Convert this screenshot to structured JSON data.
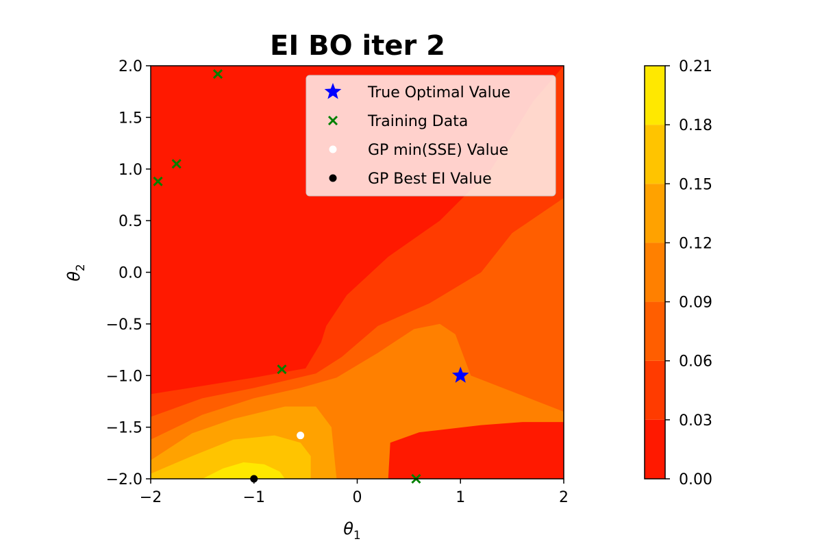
{
  "chart_data": {
    "type": "contourf",
    "title": "EI BO iter 2",
    "xlabel": "θ",
    "xlabel_sub": "1",
    "ylabel": "θ",
    "ylabel_sub": "2",
    "xlim": [
      -2,
      2
    ],
    "ylim": [
      -2,
      2
    ],
    "xticks": [
      -2,
      -1,
      0,
      1,
      2
    ],
    "xtick_labels": [
      "−2",
      "−1",
      "0",
      "1",
      "2"
    ],
    "yticks": [
      2.0,
      1.5,
      1.0,
      0.5,
      0.0,
      -0.5,
      -1.0,
      -1.5,
      -2.0
    ],
    "ytick_labels": [
      "2.0",
      "1.5",
      "1.0",
      "0.5",
      "0.0",
      "−0.5",
      "−1.0",
      "−1.5",
      "−2.0"
    ],
    "colorbar": {
      "levels": [
        0.0,
        0.03,
        0.06,
        0.09,
        0.12,
        0.15,
        0.18,
        0.21
      ],
      "tick_labels": [
        "0.00",
        "0.03",
        "0.06",
        "0.09",
        "0.12",
        "0.15",
        "0.18",
        "0.21"
      ],
      "colors": [
        "#ff1900",
        "#ff3b00",
        "#ff5e00",
        "#ff8000",
        "#ffa200",
        "#ffc400",
        "#ffe800"
      ]
    },
    "contours": [
      {
        "level_index": 1,
        "points": [
          [
            -2,
            -1.18
          ],
          [
            -1.5,
            -1.1
          ],
          [
            -1,
            -1.02
          ],
          [
            -0.5,
            -0.93
          ],
          [
            -0.35,
            -0.68
          ],
          [
            -0.3,
            -0.52
          ],
          [
            -0.1,
            -0.22
          ],
          [
            0.3,
            0.15
          ],
          [
            0.8,
            0.5
          ],
          [
            1.3,
            1.0
          ],
          [
            1.7,
            1.65
          ],
          [
            2,
            2
          ],
          [
            2,
            -2
          ],
          [
            -2,
            -2
          ]
        ]
      },
      {
        "level_index": 2,
        "points": [
          [
            -2,
            -1.4
          ],
          [
            -1.5,
            -1.22
          ],
          [
            -1,
            -1.12
          ],
          [
            -0.4,
            -0.98
          ],
          [
            -0.15,
            -0.82
          ],
          [
            0.2,
            -0.52
          ],
          [
            0.7,
            -0.3
          ],
          [
            1.2,
            0.0
          ],
          [
            1.5,
            0.38
          ],
          [
            2,
            0.72
          ],
          [
            2,
            -2
          ],
          [
            -2,
            -2
          ]
        ]
      },
      {
        "level_index": 3,
        "points": [
          [
            -2,
            -1.62
          ],
          [
            -1.5,
            -1.38
          ],
          [
            -1,
            -1.22
          ],
          [
            -0.55,
            -1.12
          ],
          [
            -0.2,
            -1.02
          ],
          [
            0.2,
            -0.78
          ],
          [
            0.55,
            -0.55
          ],
          [
            0.8,
            -0.5
          ],
          [
            0.95,
            -0.6
          ],
          [
            1.1,
            -1.0
          ],
          [
            2,
            -1.35
          ],
          [
            2,
            -2
          ],
          [
            -2,
            -2
          ]
        ]
      },
      {
        "level_index": 4,
        "points": [
          [
            -2,
            -1.82
          ],
          [
            -1.6,
            -1.56
          ],
          [
            -1.2,
            -1.42
          ],
          [
            -0.7,
            -1.3
          ],
          [
            -0.4,
            -1.3
          ],
          [
            -0.25,
            -1.5
          ],
          [
            -0.2,
            -2
          ],
          [
            -2,
            -2
          ]
        ]
      },
      {
        "level_index": 5,
        "points": [
          [
            -2,
            -1.95
          ],
          [
            -1.6,
            -1.78
          ],
          [
            -1.2,
            -1.62
          ],
          [
            -0.8,
            -1.58
          ],
          [
            -0.55,
            -1.65
          ],
          [
            -0.45,
            -1.78
          ],
          [
            -0.45,
            -2
          ],
          [
            -2,
            -2
          ]
        ]
      },
      {
        "level_index": 6,
        "points": [
          [
            -1.5,
            -2
          ],
          [
            -1.3,
            -1.9
          ],
          [
            -1.1,
            -1.84
          ],
          [
            -0.9,
            -1.86
          ],
          [
            -0.75,
            -1.93
          ],
          [
            -0.7,
            -2
          ]
        ]
      }
    ],
    "low_regions": [
      {
        "level_index": 0,
        "points": [
          [
            0.3,
            -2
          ],
          [
            0.32,
            -1.65
          ],
          [
            0.6,
            -1.55
          ],
          [
            1.2,
            -1.48
          ],
          [
            1.6,
            -1.45
          ],
          [
            2,
            -1.45
          ],
          [
            2,
            -2
          ]
        ]
      }
    ],
    "series": [
      {
        "name": "True Optimal Value",
        "marker": "star",
        "color": "#0000ff",
        "points": [
          [
            1.0,
            -1.0
          ]
        ]
      },
      {
        "name": "Training Data",
        "marker": "x",
        "color": "#008000",
        "points": [
          [
            -1.35,
            1.92
          ],
          [
            -1.75,
            1.05
          ],
          [
            -1.93,
            0.88
          ],
          [
            -0.73,
            -0.94
          ],
          [
            0.57,
            -2.0
          ]
        ]
      },
      {
        "name": "GP min(SSE) Value",
        "marker": "dot",
        "color": "#ffffff",
        "points": [
          [
            -0.55,
            -1.58
          ]
        ]
      },
      {
        "name": "GP Best EI Value",
        "marker": "dot",
        "color": "#000000",
        "points": [
          [
            -1.0,
            -2.0
          ]
        ]
      }
    ],
    "legend_position": "upper right"
  }
}
